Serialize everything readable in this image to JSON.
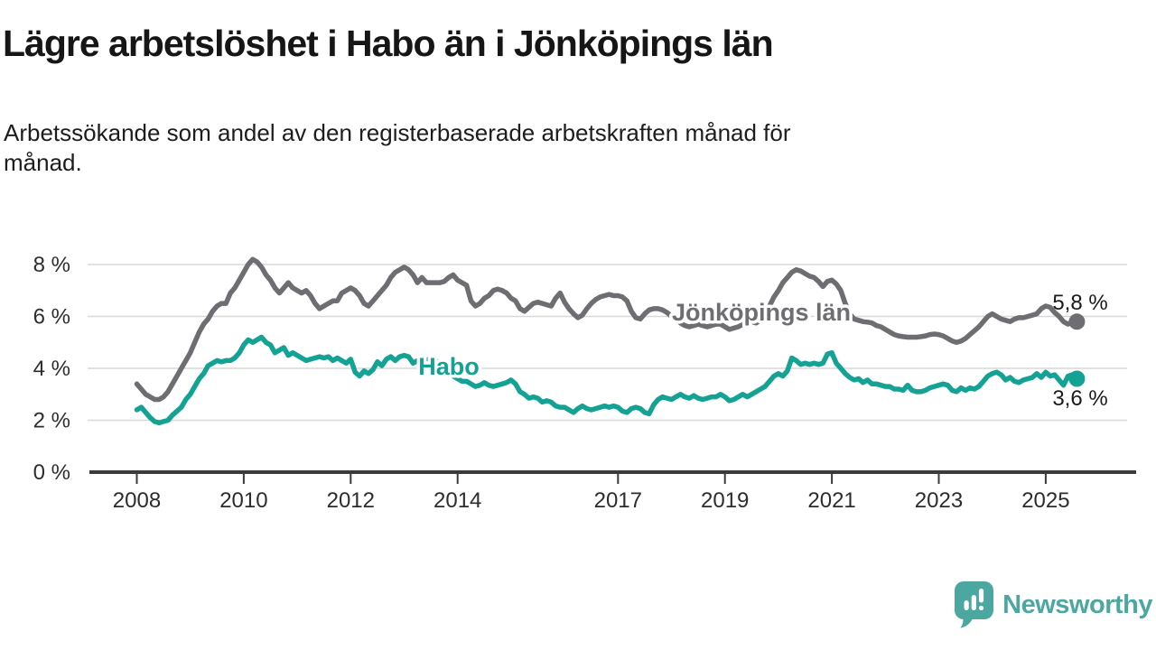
{
  "header": {
    "title": "Lägre arbetslöshet i Habo än i Jönköpings län",
    "subtitle_lines": [
      "Arbetssökande som andel av den registerbaserade arbetskraften månad för",
      "månad."
    ]
  },
  "chart_data": {
    "type": "line",
    "title": "Lägre arbetslöshet i Habo än i Jönköpings län",
    "subtitle": "Arbetssökande som andel av den registerbaserade arbetskraften månad för månad.",
    "x_unit": "month",
    "start": "2008-01",
    "end": "2025-08",
    "grid": true,
    "legend_position": "inline-labels",
    "ylim": [
      0,
      8.6
    ],
    "y_ticks": [
      {
        "value": 0,
        "label": "0 %"
      },
      {
        "value": 2,
        "label": "2 %"
      },
      {
        "value": 4,
        "label": "4 %"
      },
      {
        "value": 6,
        "label": "6 %"
      },
      {
        "value": 8,
        "label": "8 %"
      }
    ],
    "x_tick_years": [
      2008,
      2010,
      2012,
      2014,
      2017,
      2019,
      2021,
      2023,
      2025
    ],
    "colors": {
      "jonkopings_lan": "#6d6d72",
      "habo": "#14a294",
      "grid": "#d8d8d8",
      "axis": "#3b3b3b",
      "text": "#2d2d2d"
    },
    "series": [
      {
        "name": "Jönköpings län",
        "label": "Jönköpings län",
        "end_label": "5,8 %",
        "end_value": 5.8,
        "color": "#6d6d72",
        "values": [
          3.4,
          3.2,
          3.0,
          2.9,
          2.8,
          2.8,
          2.9,
          3.1,
          3.4,
          3.7,
          4.0,
          4.3,
          4.6,
          5.0,
          5.4,
          5.7,
          5.9,
          6.2,
          6.4,
          6.5,
          6.5,
          6.9,
          7.1,
          7.4,
          7.7,
          8.0,
          8.2,
          8.1,
          7.9,
          7.6,
          7.4,
          7.1,
          6.9,
          7.1,
          7.3,
          7.1,
          7.0,
          6.9,
          7.0,
          6.8,
          6.5,
          6.3,
          6.4,
          6.5,
          6.6,
          6.6,
          6.9,
          7.0,
          7.1,
          7.0,
          6.8,
          6.5,
          6.4,
          6.6,
          6.8,
          7.0,
          7.2,
          7.5,
          7.7,
          7.8,
          7.9,
          7.8,
          7.6,
          7.3,
          7.5,
          7.3,
          7.3,
          7.3,
          7.3,
          7.35,
          7.5,
          7.6,
          7.4,
          7.3,
          7.2,
          6.6,
          6.4,
          6.5,
          6.7,
          6.8,
          7.0,
          7.05,
          7.0,
          6.9,
          6.7,
          6.6,
          6.3,
          6.2,
          6.35,
          6.5,
          6.55,
          6.5,
          6.45,
          6.4,
          6.7,
          6.9,
          6.55,
          6.3,
          6.1,
          5.95,
          6.05,
          6.3,
          6.5,
          6.65,
          6.75,
          6.8,
          6.85,
          6.8,
          6.8,
          6.75,
          6.6,
          6.2,
          5.95,
          5.9,
          6.1,
          6.25,
          6.3,
          6.3,
          6.25,
          6.15,
          6.0,
          5.9,
          5.75,
          5.65,
          5.6,
          5.65,
          5.7,
          5.65,
          5.6,
          5.65,
          5.7,
          5.7,
          5.6,
          5.5,
          5.55,
          5.6,
          5.7,
          5.75,
          5.8,
          5.75,
          5.85,
          6.1,
          6.4,
          6.75,
          7.0,
          7.3,
          7.5,
          7.7,
          7.8,
          7.75,
          7.65,
          7.55,
          7.5,
          7.35,
          7.15,
          7.35,
          7.4,
          7.25,
          7.0,
          6.5,
          6.1,
          5.9,
          5.85,
          5.8,
          5.78,
          5.75,
          5.65,
          5.6,
          5.5,
          5.4,
          5.3,
          5.25,
          5.22,
          5.2,
          5.2,
          5.2,
          5.22,
          5.25,
          5.3,
          5.32,
          5.3,
          5.25,
          5.15,
          5.05,
          5.0,
          5.05,
          5.15,
          5.3,
          5.45,
          5.6,
          5.8,
          6.0,
          6.1,
          6.0,
          5.9,
          5.85,
          5.8,
          5.9,
          5.95,
          5.95,
          6.0,
          6.05,
          6.1,
          6.3,
          6.4,
          6.35,
          6.15,
          6.0,
          5.8,
          5.7,
          5.8,
          5.8
        ]
      },
      {
        "name": "Habo",
        "label": "Habo",
        "end_label": "3,6 %",
        "end_value": 3.6,
        "color": "#14a294",
        "values": [
          2.4,
          2.5,
          2.3,
          2.1,
          1.95,
          1.9,
          1.95,
          2.0,
          2.2,
          2.35,
          2.5,
          2.8,
          3.0,
          3.3,
          3.6,
          3.8,
          4.1,
          4.2,
          4.3,
          4.25,
          4.3,
          4.3,
          4.4,
          4.6,
          4.9,
          5.1,
          5.0,
          5.1,
          5.2,
          5.0,
          4.9,
          4.6,
          4.7,
          4.8,
          4.5,
          4.6,
          4.5,
          4.4,
          4.3,
          4.35,
          4.4,
          4.45,
          4.4,
          4.45,
          4.3,
          4.4,
          4.3,
          4.2,
          4.35,
          3.85,
          3.7,
          3.9,
          3.8,
          3.95,
          4.25,
          4.1,
          4.35,
          4.45,
          4.3,
          4.45,
          4.5,
          4.45,
          4.2,
          4.3,
          4.4,
          4.3,
          4.4,
          4.3,
          4.2,
          4.0,
          3.85,
          3.7,
          3.6,
          3.5,
          3.5,
          3.4,
          3.3,
          3.35,
          3.45,
          3.35,
          3.3,
          3.35,
          3.4,
          3.45,
          3.55,
          3.4,
          3.1,
          3.0,
          2.85,
          2.9,
          2.85,
          2.7,
          2.75,
          2.7,
          2.55,
          2.5,
          2.5,
          2.4,
          2.3,
          2.45,
          2.55,
          2.45,
          2.4,
          2.45,
          2.5,
          2.55,
          2.5,
          2.55,
          2.5,
          2.35,
          2.3,
          2.45,
          2.5,
          2.45,
          2.3,
          2.25,
          2.6,
          2.8,
          2.9,
          2.85,
          2.8,
          2.9,
          3.0,
          2.9,
          2.85,
          2.95,
          2.85,
          2.8,
          2.85,
          2.9,
          2.9,
          3.0,
          2.9,
          2.75,
          2.8,
          2.9,
          3.0,
          2.9,
          3.0,
          3.1,
          3.2,
          3.3,
          3.5,
          3.7,
          3.8,
          3.7,
          3.9,
          4.4,
          4.3,
          4.15,
          4.2,
          4.15,
          4.2,
          4.15,
          4.2,
          4.55,
          4.6,
          4.2,
          4.0,
          3.8,
          3.65,
          3.55,
          3.6,
          3.45,
          3.55,
          3.4,
          3.4,
          3.35,
          3.3,
          3.3,
          3.2,
          3.2,
          3.15,
          3.35,
          3.15,
          3.1,
          3.1,
          3.15,
          3.25,
          3.3,
          3.35,
          3.4,
          3.35,
          3.15,
          3.1,
          3.25,
          3.15,
          3.25,
          3.2,
          3.3,
          3.5,
          3.7,
          3.8,
          3.85,
          3.75,
          3.55,
          3.65,
          3.5,
          3.45,
          3.55,
          3.6,
          3.65,
          3.8,
          3.65,
          3.85,
          3.7,
          3.75,
          3.55,
          3.35,
          3.7,
          3.75,
          3.6
        ]
      }
    ]
  },
  "footer": {
    "brand": "Newsworthy",
    "brand_color": "#4ba7a0"
  }
}
